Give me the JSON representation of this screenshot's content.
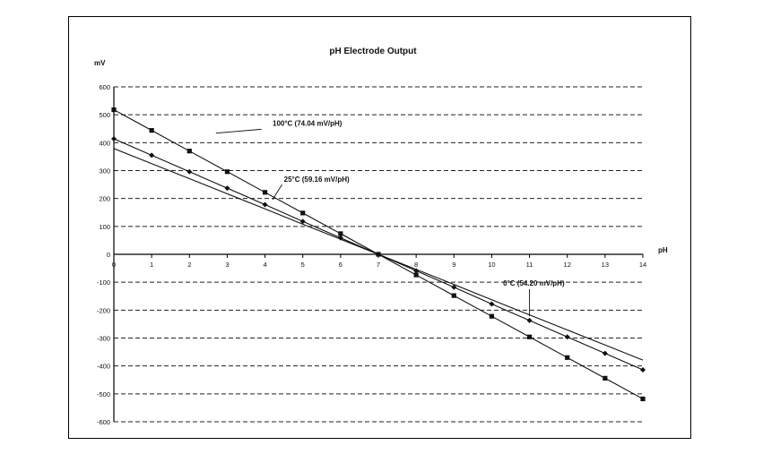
{
  "chart_data": {
    "type": "line",
    "title": "pH Electrode Output",
    "ylabel": "mV",
    "xlabel": "pH",
    "xlim": [
      0,
      14
    ],
    "ylim": [
      -600,
      600
    ],
    "x_ticks": [
      "0",
      "1",
      "2",
      "3",
      "4",
      "5",
      "6",
      "7",
      "8",
      "9",
      "10",
      "11",
      "12",
      "13",
      "14"
    ],
    "y_ticks": [
      "600",
      "500",
      "400",
      "300",
      "200",
      "100",
      "0",
      "-100",
      "-200",
      "-300",
      "-400",
      "-500",
      "-600"
    ],
    "grid": "horizontal dashed",
    "x": [
      0,
      1,
      2,
      3,
      4,
      5,
      6,
      7,
      8,
      9,
      10,
      11,
      12,
      13,
      14
    ],
    "series": [
      {
        "name": "100°C (74.04 mV/pH)",
        "marker": "square",
        "values": [
          518,
          444,
          370,
          296,
          222,
          148,
          74,
          0,
          -74,
          -148,
          -222,
          -296,
          -370,
          -444,
          -518
        ]
      },
      {
        "name": "25°C (59.16 mV/pH)",
        "marker": "diamond",
        "values": [
          414,
          355,
          296,
          237,
          178,
          118,
          59,
          0,
          -59,
          -118,
          -178,
          -237,
          -296,
          -355,
          -414
        ]
      },
      {
        "name": "0°C (54.20 mV/pH)",
        "marker": "none",
        "values": [
          379,
          325,
          271,
          217,
          163,
          108,
          54,
          0,
          -54,
          -108,
          -163,
          -217,
          -271,
          -325,
          -379
        ]
      }
    ],
    "annotations": [
      "100°C (74.04 mV/pH)",
      "25°C (59.16 mV/pH)",
      "0°C (54.20 mV/pH)"
    ]
  }
}
